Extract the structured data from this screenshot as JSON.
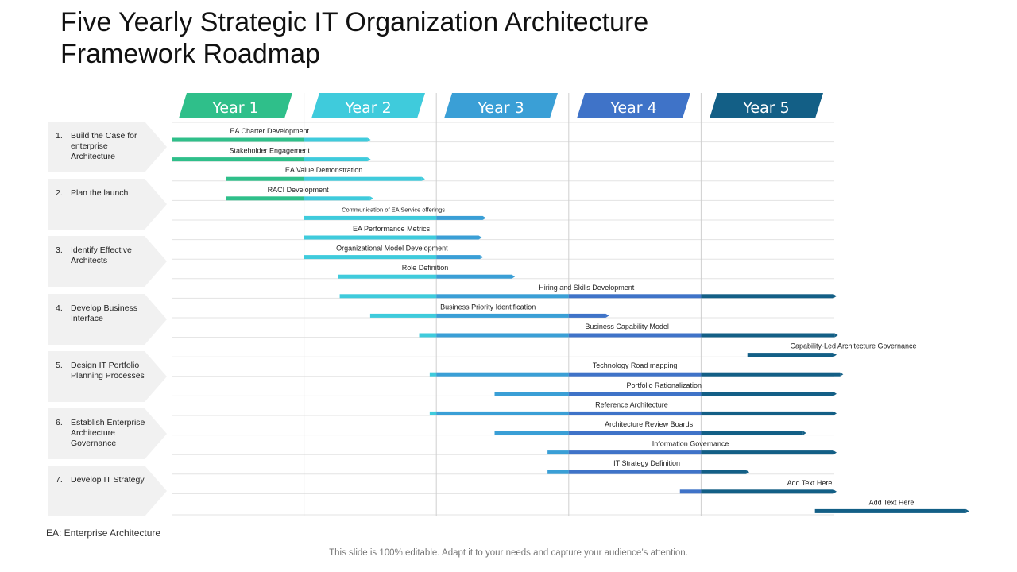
{
  "title": {
    "line1": "Five Yearly Strategic IT Organization Architecture",
    "line2": "Framework Roadmap"
  },
  "years": [
    {
      "label": "Year 1",
      "color": "#2fbf8a"
    },
    {
      "label": "Year 2",
      "color": "#3fcbdc"
    },
    {
      "label": "Year 3",
      "color": "#3a9fd6"
    },
    {
      "label": "Year 4",
      "color": "#3f73c8"
    },
    {
      "label": "Year 5",
      "color": "#135f86"
    }
  ],
  "stages": [
    {
      "number": "1.",
      "label": "Build the Case for enterprise Architecture"
    },
    {
      "number": "2.",
      "label": "Plan the launch"
    },
    {
      "number": "3.",
      "label": "Identify Effective Architects"
    },
    {
      "number": "4.",
      "label": "Develop Business Interface"
    },
    {
      "number": "5.",
      "label": "Design IT Portfolio Planning Processes"
    },
    {
      "number": "6.",
      "label": "Establish Enterprise Architecture Governance"
    },
    {
      "number": "7.",
      "label": "Develop IT Strategy"
    }
  ],
  "chart_data": {
    "type": "gantt",
    "x_unit": "year",
    "xlim": [
      0,
      5
    ],
    "tasks": [
      {
        "name": "EA Charter Development",
        "start": 0.0,
        "end": 1.48
      },
      {
        "name": "Stakeholder Engagement",
        "start": 0.0,
        "end": 1.48
      },
      {
        "name": "EA Value Demonstration",
        "start": 0.41,
        "end": 1.89
      },
      {
        "name": "RACI Development",
        "start": 0.41,
        "end": 1.5
      },
      {
        "name": "Communication of EA Service offerings",
        "start": 1.0,
        "end": 2.35
      },
      {
        "name": "EA Performance Metrics",
        "start": 1.0,
        "end": 2.32
      },
      {
        "name": "Organizational  Model Development",
        "start": 1.0,
        "end": 2.33
      },
      {
        "name": "Role Definition",
        "start": 1.26,
        "end": 2.57
      },
      {
        "name": "Hiring and Skills Development",
        "start": 1.27,
        "end": 5.0
      },
      {
        "name": "Business Priority Identification",
        "start": 1.5,
        "end": 3.28
      },
      {
        "name": "Business Capability Model",
        "start": 1.87,
        "end": 5.01
      },
      {
        "name": "Capability-Led Architecture Governance",
        "start": 4.35,
        "end": 5.0
      },
      {
        "name": "Technology  Road mapping",
        "start": 1.95,
        "end": 5.05
      },
      {
        "name": "Portfolio Rationalization",
        "start": 2.44,
        "end": 5.0
      },
      {
        "name": "Reference Architecture",
        "start": 1.95,
        "end": 5.0
      },
      {
        "name": "Architecture Review Boards",
        "start": 2.44,
        "end": 4.77
      },
      {
        "name": "Information Governance",
        "start": 2.84,
        "end": 5.0
      },
      {
        "name": "IT Strategy Definition",
        "start": 2.84,
        "end": 4.34
      },
      {
        "name": "Add Text Here",
        "start": 3.84,
        "end": 5.0
      },
      {
        "name": "Add Text Here",
        "start": 4.86,
        "end": 6.0
      }
    ]
  },
  "footnote": "EA: Enterprise Architecture",
  "disclaimer": "This slide is 100% editable. Adapt it to your needs and capture your audience’s attention."
}
